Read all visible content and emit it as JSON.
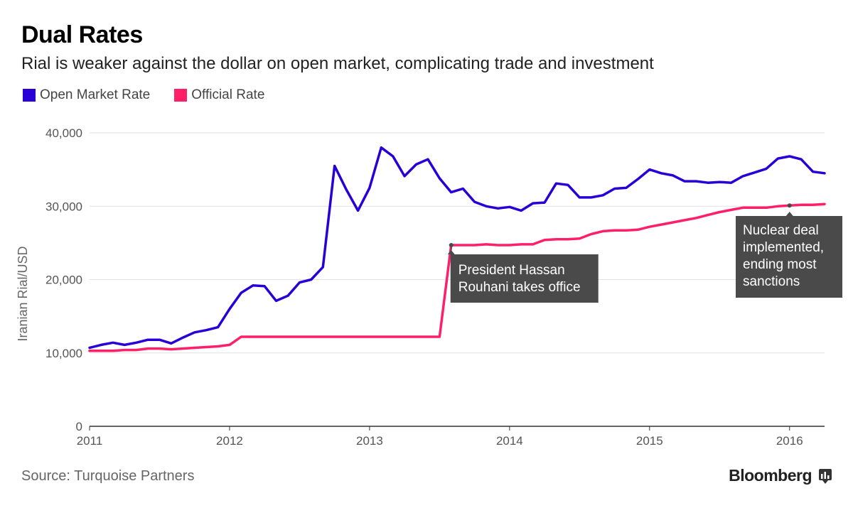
{
  "title": "Dual Rates",
  "subtitle": "Rial is weaker against the dollar on open market, complicating trade and investment",
  "source": "Source: Turquoise Partners",
  "brand": "Bloomberg",
  "colors": {
    "open_market": "#2800d7",
    "official": "#ff1f69",
    "annotation_bg": "#4a4a4a"
  },
  "chart_data": {
    "type": "line",
    "ylabel": "Iranian Rial/USD",
    "xlabel": "",
    "ylim": [
      0,
      40000
    ],
    "xlim": [
      2011.0,
      2016.25
    ],
    "y_ticks": [
      0,
      10000,
      20000,
      30000,
      40000
    ],
    "y_tick_labels": [
      "0",
      "10,000",
      "20,000",
      "30,000",
      "40,000"
    ],
    "x_ticks": [
      2011,
      2012,
      2013,
      2014,
      2015,
      2016
    ],
    "x_tick_labels": [
      "2011",
      "2012",
      "2013",
      "2014",
      "2015",
      "2016"
    ],
    "grid": true,
    "legend": "top-left",
    "series": [
      {
        "name": "Open Market Rate",
        "color": "#2800d7",
        "x": [
          2011.0,
          2011.083,
          2011.167,
          2011.25,
          2011.333,
          2011.417,
          2011.5,
          2011.583,
          2011.667,
          2011.75,
          2011.833,
          2011.917,
          2012.0,
          2012.083,
          2012.167,
          2012.25,
          2012.333,
          2012.417,
          2012.5,
          2012.583,
          2012.667,
          2012.75,
          2012.833,
          2012.917,
          2013.0,
          2013.083,
          2013.167,
          2013.25,
          2013.333,
          2013.417,
          2013.5,
          2013.583,
          2013.667,
          2013.75,
          2013.833,
          2013.917,
          2014.0,
          2014.083,
          2014.167,
          2014.25,
          2014.333,
          2014.417,
          2014.5,
          2014.583,
          2014.667,
          2014.75,
          2014.833,
          2014.917,
          2015.0,
          2015.083,
          2015.167,
          2015.25,
          2015.333,
          2015.417,
          2015.5,
          2015.583,
          2015.667,
          2015.75,
          2015.833,
          2015.917,
          2016.0,
          2016.083,
          2016.167,
          2016.25
        ],
        "values": [
          10700,
          11100,
          11400,
          11100,
          11400,
          11800,
          11800,
          11300,
          12100,
          12800,
          13100,
          13500,
          16000,
          18200,
          19200,
          19100,
          17100,
          17800,
          19600,
          20000,
          21700,
          35500,
          32300,
          29400,
          32500,
          38000,
          36800,
          34100,
          35700,
          36400,
          33800,
          31900,
          32400,
          30600,
          30000,
          29700,
          29900,
          29400,
          30400,
          30500,
          33100,
          32900,
          31200,
          31200,
          31500,
          32400,
          32500,
          33700,
          35000,
          34500,
          34200,
          33400,
          33400,
          33200,
          33300,
          33200,
          34100,
          34600,
          35100,
          36500,
          36800,
          36400,
          34700,
          34500
        ]
      },
      {
        "name": "Official Rate",
        "color": "#ff1f69",
        "x": [
          2011.0,
          2011.083,
          2011.167,
          2011.25,
          2011.333,
          2011.417,
          2011.5,
          2011.583,
          2011.667,
          2011.75,
          2011.833,
          2011.917,
          2012.0,
          2012.083,
          2012.167,
          2012.25,
          2012.333,
          2012.417,
          2012.5,
          2012.583,
          2012.667,
          2012.75,
          2012.833,
          2012.917,
          2013.0,
          2013.083,
          2013.167,
          2013.25,
          2013.333,
          2013.417,
          2013.5,
          2013.583,
          2013.667,
          2013.75,
          2013.833,
          2013.917,
          2014.0,
          2014.083,
          2014.167,
          2014.25,
          2014.333,
          2014.417,
          2014.5,
          2014.583,
          2014.667,
          2014.75,
          2014.833,
          2014.917,
          2015.0,
          2015.083,
          2015.167,
          2015.25,
          2015.333,
          2015.417,
          2015.5,
          2015.583,
          2015.667,
          2015.75,
          2015.833,
          2015.917,
          2016.0,
          2016.083,
          2016.167,
          2016.25
        ],
        "values": [
          10300,
          10300,
          10300,
          10400,
          10400,
          10600,
          10600,
          10500,
          10600,
          10700,
          10800,
          10900,
          11100,
          12200,
          12200,
          12200,
          12200,
          12200,
          12200,
          12200,
          12200,
          12200,
          12200,
          12200,
          12200,
          12200,
          12200,
          12200,
          12200,
          12200,
          12200,
          24700,
          24700,
          24700,
          24800,
          24700,
          24700,
          24800,
          24800,
          25400,
          25500,
          25500,
          25600,
          26200,
          26600,
          26700,
          26700,
          26800,
          27200,
          27500,
          27800,
          28100,
          28400,
          28800,
          29200,
          29500,
          29800,
          29800,
          29800,
          30000,
          30100,
          30200,
          30200,
          30300
        ]
      }
    ],
    "annotations": [
      {
        "text": [
          "President Hassan",
          "Rouhani takes office"
        ],
        "x": 2013.583,
        "y": 24700
      },
      {
        "text": [
          "Nuclear deal",
          "implemented,",
          "ending most",
          "sanctions"
        ],
        "x": 2016.0,
        "y": 30100
      }
    ]
  }
}
